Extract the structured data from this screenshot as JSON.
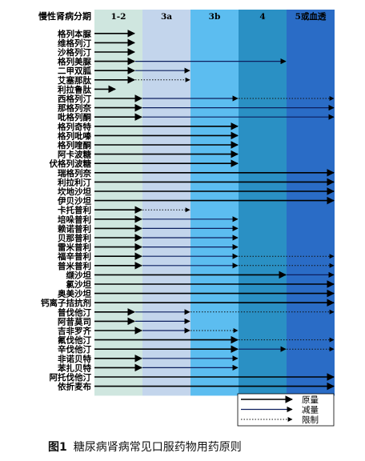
{
  "figure": {
    "caption_label": "图1",
    "caption_text": "糖尿病肾病常见口服药物用药原则"
  },
  "chart_data": {
    "type": "table",
    "header_label": "慢性肾病分期",
    "stages": [
      "1-2",
      "3a",
      "3b",
      "4",
      "5或血透"
    ],
    "stage_colors": [
      "#cfe6df",
      "#c3d5ec",
      "#5cbdf0",
      "#2a90c4",
      "#2a6cc6"
    ],
    "line_styles": {
      "full": {
        "label": "原量",
        "color": "#000000",
        "dash": "",
        "width": 1.6
      },
      "reduce": {
        "label": "减量",
        "color": "#0d1f5e",
        "dash": "",
        "width": 1.2
      },
      "limit": {
        "label": "限制",
        "color": "#111111",
        "dash": "1.5,2",
        "width": 1.0
      }
    },
    "legend_order": [
      "full",
      "reduce",
      "limit"
    ],
    "drugs": [
      {
        "name": "格列本脲",
        "segments": [
          [
            "full",
            0,
            0.85
          ]
        ]
      },
      {
        "name": "维格列汀",
        "segments": [
          [
            "full",
            0,
            0.85
          ]
        ]
      },
      {
        "name": "沙格列汀",
        "segments": [
          [
            "full",
            0,
            0.85
          ]
        ]
      },
      {
        "name": "格列美脲",
        "segments": [
          [
            "full",
            0,
            0.85
          ],
          [
            "reduce",
            0.85,
            4.0
          ]
        ]
      },
      {
        "name": "二甲双胍",
        "segments": [
          [
            "full",
            0,
            0.85
          ],
          [
            "reduce",
            0.85,
            2.0
          ]
        ]
      },
      {
        "name": "艾塞那肽",
        "segments": [
          [
            "full",
            0,
            0.85
          ],
          [
            "limit",
            0.85,
            2.0
          ]
        ]
      },
      {
        "name": "利拉鲁肽",
        "segments": [
          [
            "full",
            0,
            0.45
          ]
        ]
      },
      {
        "name": "西格列汀",
        "segments": [
          [
            "full",
            0,
            1.0
          ],
          [
            "reduce",
            1.0,
            3.0
          ],
          [
            "limit",
            3.0,
            5.0
          ]
        ]
      },
      {
        "name": "那格列奈",
        "segments": [
          [
            "full",
            0,
            1.0
          ],
          [
            "reduce",
            1.0,
            5.0
          ]
        ]
      },
      {
        "name": "吡格列酮",
        "segments": [
          [
            "full",
            0,
            1.0
          ],
          [
            "reduce",
            1.0,
            5.0
          ]
        ]
      },
      {
        "name": "格列奇特",
        "segments": [
          [
            "full",
            0,
            3.0
          ]
        ]
      },
      {
        "name": "格列吡嗪",
        "segments": [
          [
            "full",
            0,
            3.0
          ]
        ]
      },
      {
        "name": "格列喹酮",
        "segments": [
          [
            "full",
            0,
            3.0
          ]
        ]
      },
      {
        "name": "阿卡波糖",
        "segments": [
          [
            "full",
            0,
            3.0
          ]
        ]
      },
      {
        "name": "伏格列波糖",
        "segments": [
          [
            "full",
            0,
            3.0
          ]
        ]
      },
      {
        "name": "瑞格列奈",
        "segments": [
          [
            "full",
            0,
            5.0
          ]
        ]
      },
      {
        "name": "利拉利汀",
        "segments": [
          [
            "full",
            0,
            5.0
          ]
        ]
      },
      {
        "name": "坎地沙坦",
        "segments": [
          [
            "full",
            0,
            5.0
          ]
        ]
      },
      {
        "name": "伊贝沙坦",
        "segments": [
          [
            "full",
            0,
            5.0
          ]
        ]
      },
      {
        "name": "卡托普利",
        "segments": [
          [
            "full",
            0,
            1.0
          ],
          [
            "limit",
            1.0,
            2.0
          ]
        ]
      },
      {
        "name": "培哚普利",
        "segments": [
          [
            "full",
            0,
            1.0
          ],
          [
            "reduce",
            1.0,
            3.0
          ]
        ]
      },
      {
        "name": "赖诺普利",
        "segments": [
          [
            "full",
            0,
            1.0
          ],
          [
            "reduce",
            1.0,
            3.0
          ]
        ]
      },
      {
        "name": "贝那普利",
        "segments": [
          [
            "full",
            0,
            1.0
          ],
          [
            "reduce",
            1.0,
            3.0
          ]
        ]
      },
      {
        "name": "雷米普利",
        "segments": [
          [
            "full",
            0,
            1.0
          ],
          [
            "reduce",
            1.0,
            3.0
          ]
        ]
      },
      {
        "name": "福辛普利",
        "segments": [
          [
            "full",
            0,
            1.0
          ],
          [
            "reduce",
            1.0,
            3.0
          ],
          [
            "limit",
            3.0,
            5.0
          ]
        ]
      },
      {
        "name": "普米普利",
        "segments": [
          [
            "full",
            0,
            1.0
          ],
          [
            "reduce",
            1.0,
            3.0
          ],
          [
            "limit",
            3.0,
            5.0
          ]
        ]
      },
      {
        "name": "缬沙坦",
        "segments": [
          [
            "full",
            0,
            4.0
          ],
          [
            "reduce",
            4.0,
            5.0
          ]
        ]
      },
      {
        "name": "氯沙坦",
        "segments": [
          [
            "full",
            0,
            5.0
          ]
        ]
      },
      {
        "name": "奥美沙坦",
        "segments": [
          [
            "full",
            0,
            5.0
          ]
        ]
      },
      {
        "name": "钙离子拮抗剂",
        "segments": [
          [
            "full",
            0,
            5.0
          ]
        ]
      },
      {
        "name": "普伐他汀",
        "segments": [
          [
            "full",
            0,
            0.85
          ],
          [
            "reduce",
            0.85,
            2.0
          ],
          [
            "limit",
            2.0,
            5.0
          ]
        ]
      },
      {
        "name": "阿昔莫司",
        "segments": [
          [
            "full",
            0,
            0.85
          ],
          [
            "reduce",
            0.85,
            2.0
          ]
        ]
      },
      {
        "name": "吉非罗齐",
        "segments": [
          [
            "full",
            0,
            1.0
          ],
          [
            "reduce",
            1.0,
            2.0
          ],
          [
            "limit",
            2.0,
            3.0
          ]
        ]
      },
      {
        "name": "氟伐他汀",
        "segments": [
          [
            "full",
            0,
            3.0
          ],
          [
            "limit",
            3.0,
            5.0
          ]
        ]
      },
      {
        "name": "辛伐他汀",
        "segments": [
          [
            "full",
            0,
            3.0
          ],
          [
            "reduce",
            3.0,
            4.0
          ],
          [
            "limit",
            4.0,
            5.0
          ]
        ]
      },
      {
        "name": "非诺贝特",
        "segments": [
          [
            "full",
            0,
            1.0
          ],
          [
            "reduce",
            1.0,
            3.0
          ]
        ]
      },
      {
        "name": "苯扎贝特",
        "segments": [
          [
            "full",
            0,
            1.0
          ],
          [
            "reduce",
            1.0,
            3.0
          ]
        ]
      },
      {
        "name": "阿托伐他汀",
        "segments": [
          [
            "full",
            0,
            5.0
          ]
        ]
      },
      {
        "name": "依折麦布",
        "segments": [
          [
            "full",
            0,
            5.0
          ]
        ]
      }
    ]
  }
}
